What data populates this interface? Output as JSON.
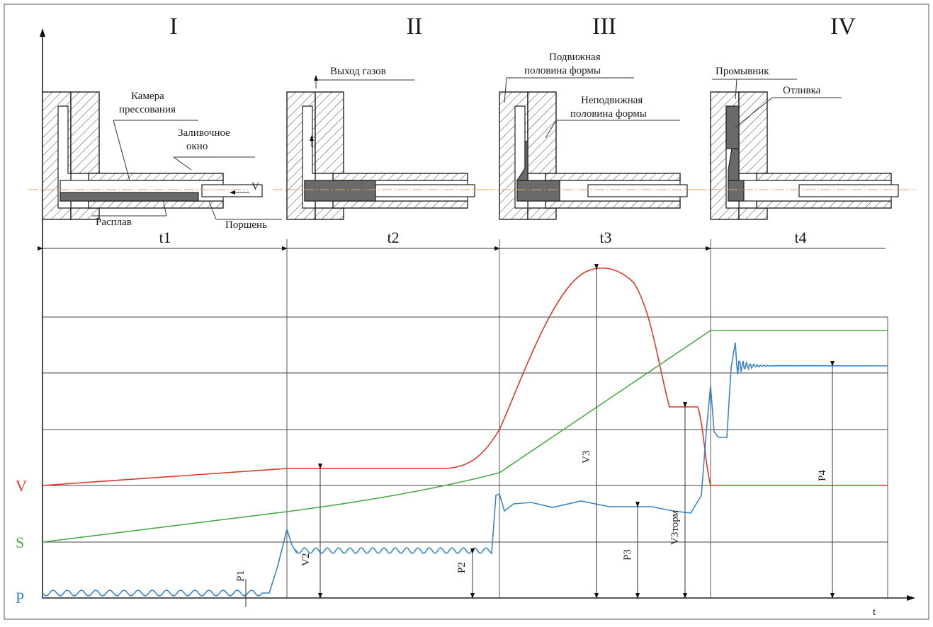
{
  "stages": [
    "I",
    "II",
    "III",
    "IV"
  ],
  "time_labels": [
    "t1",
    "t2",
    "t3",
    "t4"
  ],
  "labels": {
    "chamber": "Камера\nпрессования",
    "pour_window": "Заливочное\nокно",
    "velocity_arrow": "V",
    "melt": "Расплав",
    "piston": "Поршень",
    "gas_exit": "Выход газов",
    "movable_half": "Подвижная\nполовина формы",
    "fixed_half": "Неподвижная\nполовина формы",
    "flusher": "Промывник",
    "casting": "Отливка"
  },
  "curves": [
    {
      "label": "V",
      "color": "#d93a2b"
    },
    {
      "label": "S",
      "color": "#4aaa4a"
    },
    {
      "label": "P",
      "color": "#3a86c8"
    }
  ],
  "axis": {
    "x_label": "t"
  },
  "dims": {
    "p1": "P1",
    "p2": "P2",
    "p3": "P3",
    "p4": "P4",
    "v2": "V2",
    "v3": "V3",
    "v3torm": "V3торм"
  }
}
